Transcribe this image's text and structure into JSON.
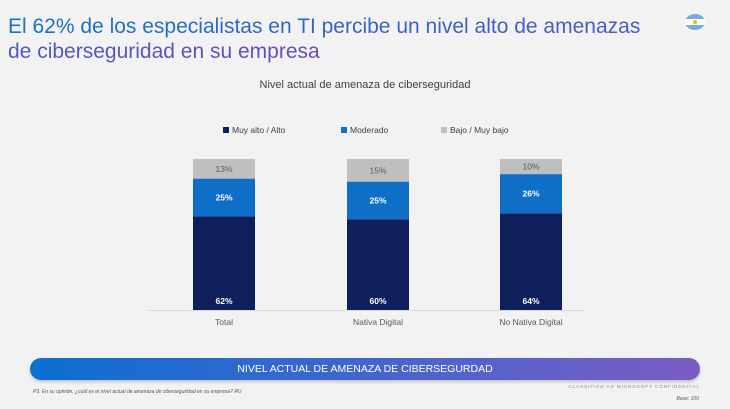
{
  "title": "El 62% de los especialistas en TI percibe un nivel alto de amenazas de ciberseguridad en su empresa",
  "flag_icon": "argentina-flag-icon",
  "banner": "NIVEL ACTUAL DE AMENAZA DE CIBERSEGURDAD",
  "footnote": "P3. En su opinión, ¿cuál es el nivel actual de amenaza de ciberseguridad en su empresa? RU",
  "classification": "CLASSIFIED AS MICROSOFT CONFIDENTIAL",
  "base": "Base: 100",
  "chart_data": {
    "type": "bar",
    "stacked": true,
    "title": "Nivel actual de amenaza de ciberseguridad",
    "categories": [
      "Total",
      "Nativa Digital",
      "No Nativa Digital"
    ],
    "series": [
      {
        "name": "Muy alto / Alto",
        "values": [
          62,
          60,
          64
        ],
        "labels": [
          "62%",
          "60%",
          "64%"
        ],
        "color": "#0e1f5b"
      },
      {
        "name": "Moderado",
        "values": [
          25,
          25,
          26
        ],
        "labels": [
          "25%",
          "25%",
          "26%"
        ],
        "color": "#0f6fc6"
      },
      {
        "name": "Bajo / Muy bajo",
        "values": [
          13,
          15,
          10
        ],
        "labels": [
          "13%",
          "15%",
          "10%"
        ],
        "color": "#bfbfbf"
      }
    ],
    "ylim": [
      0,
      100
    ],
    "grid": false,
    "legend": "top"
  }
}
